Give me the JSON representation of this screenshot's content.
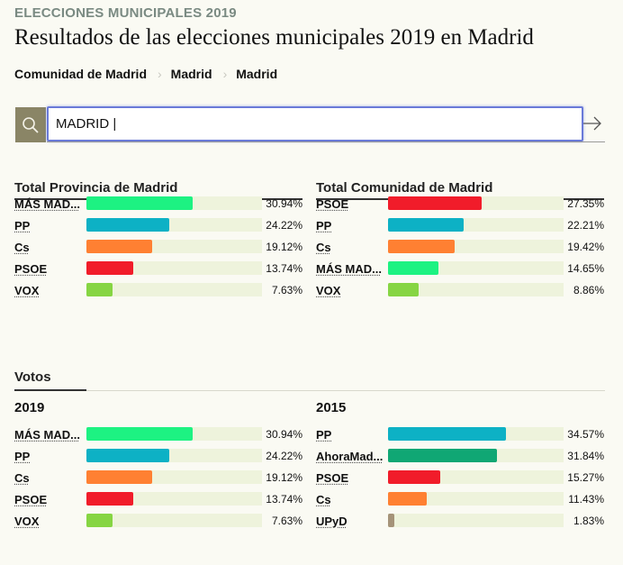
{
  "header": {
    "kicker": "ELECCIONES MUNICIPALES 2019",
    "title": "Resultados de las elecciones municipales 2019 en Madrid"
  },
  "breadcrumb": [
    "Comunidad de Madrid",
    "Madrid",
    "Madrid"
  ],
  "search": {
    "value": "MADRID |"
  },
  "colors": {
    "mas_madrid": "#1df282",
    "pp": "#0db1c5",
    "cs": "#ff8032",
    "psoe": "#f11c2a",
    "vox": "#86d543",
    "ahora_madrid": "#10a774",
    "upyd": "#a59379",
    "track": "#eef3dc",
    "search_box": "#8a8566",
    "focus": "#6a7ad8"
  },
  "provincia": {
    "title": "Total Provincia de Madrid",
    "rows": [
      {
        "party": "MÁS MAD...",
        "pct": "30.94%",
        "value": 30.94,
        "color": "#1df282"
      },
      {
        "party": "PP",
        "pct": "24.22%",
        "value": 24.22,
        "color": "#0db1c5"
      },
      {
        "party": "Cs",
        "pct": "19.12%",
        "value": 19.12,
        "color": "#ff8032"
      },
      {
        "party": "PSOE",
        "pct": "13.74%",
        "value": 13.74,
        "color": "#f11c2a"
      },
      {
        "party": "VOX",
        "pct": "7.63%",
        "value": 7.63,
        "color": "#86d543"
      }
    ]
  },
  "comunidad": {
    "title": "Total Comunidad de Madrid",
    "rows": [
      {
        "party": "PSOE",
        "pct": "27.35%",
        "value": 27.35,
        "color": "#f11c2a"
      },
      {
        "party": "PP",
        "pct": "22.21%",
        "value": 22.21,
        "color": "#0db1c5"
      },
      {
        "party": "Cs",
        "pct": "19.42%",
        "value": 19.42,
        "color": "#ff8032"
      },
      {
        "party": "MÁS MAD...",
        "pct": "14.65%",
        "value": 14.65,
        "color": "#1df282"
      },
      {
        "party": "VOX",
        "pct": "8.86%",
        "value": 8.86,
        "color": "#86d543"
      }
    ]
  },
  "votos": {
    "title": "Votos",
    "y2019": {
      "label": "2019",
      "rows": [
        {
          "party": "MÁS MAD...",
          "pct": "30.94%",
          "value": 30.94,
          "color": "#1df282"
        },
        {
          "party": "PP",
          "pct": "24.22%",
          "value": 24.22,
          "color": "#0db1c5"
        },
        {
          "party": "Cs",
          "pct": "19.12%",
          "value": 19.12,
          "color": "#ff8032"
        },
        {
          "party": "PSOE",
          "pct": "13.74%",
          "value": 13.74,
          "color": "#f11c2a"
        },
        {
          "party": "VOX",
          "pct": "7.63%",
          "value": 7.63,
          "color": "#86d543"
        }
      ]
    },
    "y2015": {
      "label": "2015",
      "rows": [
        {
          "party": "PP",
          "pct": "34.57%",
          "value": 34.57,
          "color": "#0db1c5"
        },
        {
          "party": "AhoraMad...",
          "pct": "31.84%",
          "value": 31.84,
          "color": "#10a774"
        },
        {
          "party": "PSOE",
          "pct": "15.27%",
          "value": 15.27,
          "color": "#f11c2a"
        },
        {
          "party": "Cs",
          "pct": "11.43%",
          "value": 11.43,
          "color": "#ff8032"
        },
        {
          "party": "UPyD",
          "pct": "1.83%",
          "value": 1.83,
          "color": "#a59379"
        }
      ]
    }
  }
}
